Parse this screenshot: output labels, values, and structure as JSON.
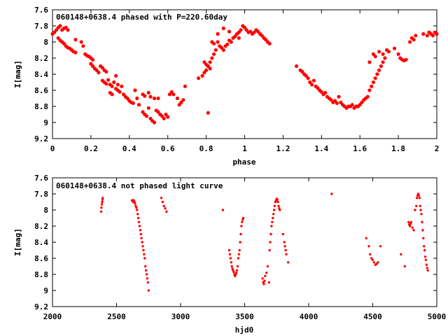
{
  "chart_data": [
    {
      "type": "scatter",
      "title": "060148+0638.4 phased with P=220.60day",
      "xlabel": "phase",
      "ylabel": "I[mag]",
      "xlim": [
        0,
        2
      ],
      "ylim": [
        7.6,
        9.2
      ],
      "y_inverted": true,
      "x_ticks": [
        "0",
        "0.2",
        "0.4",
        "0.6",
        "0.8",
        "1",
        "1.2",
        "1.4",
        "1.6",
        "1.8",
        "2"
      ],
      "y_ticks": [
        "7.6",
        "7.8",
        "8",
        "8.2",
        "8.4",
        "8.6",
        "8.8",
        "9",
        "9.2"
      ],
      "marker": "filled-circle",
      "color": "#ff0000",
      "grid": false,
      "legend": "none",
      "points": [
        [
          0.0,
          7.9
        ],
        [
          0.01,
          7.88
        ],
        [
          0.02,
          7.85
        ],
        [
          0.03,
          7.82
        ],
        [
          0.04,
          7.8
        ],
        [
          0.05,
          7.85
        ],
        [
          0.06,
          7.83
        ],
        [
          0.07,
          7.82
        ],
        [
          0.08,
          7.85
        ],
        [
          0.03,
          7.95
        ],
        [
          0.04,
          7.98
        ],
        [
          0.05,
          8.0
        ],
        [
          0.06,
          8.02
        ],
        [
          0.07,
          8.05
        ],
        [
          0.08,
          8.07
        ],
        [
          0.09,
          8.08
        ],
        [
          0.1,
          8.1
        ],
        [
          0.11,
          8.12
        ],
        [
          0.12,
          8.13
        ],
        [
          0.12,
          7.97
        ],
        [
          0.15,
          8.0
        ],
        [
          0.16,
          8.05
        ],
        [
          0.17,
          8.15
        ],
        [
          0.18,
          8.17
        ],
        [
          0.19,
          8.18
        ],
        [
          0.2,
          8.2
        ],
        [
          0.21,
          8.22
        ],
        [
          0.2,
          8.27
        ],
        [
          0.21,
          8.3
        ],
        [
          0.22,
          8.33
        ],
        [
          0.23,
          8.35
        ],
        [
          0.24,
          8.38
        ],
        [
          0.25,
          8.3
        ],
        [
          0.26,
          8.32
        ],
        [
          0.27,
          8.35
        ],
        [
          0.28,
          8.37
        ],
        [
          0.26,
          8.48
        ],
        [
          0.27,
          8.5
        ],
        [
          0.28,
          8.52
        ],
        [
          0.29,
          8.47
        ],
        [
          0.3,
          8.53
        ],
        [
          0.31,
          8.55
        ],
        [
          0.32,
          8.5
        ],
        [
          0.33,
          8.42
        ],
        [
          0.34,
          8.53
        ],
        [
          0.3,
          8.63
        ],
        [
          0.31,
          8.65
        ],
        [
          0.33,
          8.58
        ],
        [
          0.34,
          8.6
        ],
        [
          0.35,
          8.62
        ],
        [
          0.36,
          8.55
        ],
        [
          0.37,
          8.65
        ],
        [
          0.38,
          8.68
        ],
        [
          0.39,
          8.7
        ],
        [
          0.4,
          8.73
        ],
        [
          0.41,
          8.75
        ],
        [
          0.42,
          8.76
        ],
        [
          0.43,
          8.6
        ],
        [
          0.44,
          8.7
        ],
        [
          0.45,
          8.78
        ],
        [
          0.47,
          8.65
        ],
        [
          0.48,
          8.67
        ],
        [
          0.5,
          8.63
        ],
        [
          0.51,
          8.68
        ],
        [
          0.53,
          8.7
        ],
        [
          0.55,
          8.7
        ],
        [
          0.47,
          8.87
        ],
        [
          0.48,
          8.9
        ],
        [
          0.49,
          8.92
        ],
        [
          0.5,
          8.82
        ],
        [
          0.51,
          8.95
        ],
        [
          0.52,
          8.98
        ],
        [
          0.53,
          9.0
        ],
        [
          0.54,
          8.85
        ],
        [
          0.55,
          8.87
        ],
        [
          0.56,
          8.9
        ],
        [
          0.57,
          8.92
        ],
        [
          0.58,
          8.95
        ],
        [
          0.59,
          8.9
        ],
        [
          0.6,
          8.93
        ],
        [
          0.61,
          8.65
        ],
        [
          0.62,
          8.62
        ],
        [
          0.63,
          8.65
        ],
        [
          0.65,
          8.7
        ],
        [
          0.66,
          8.78
        ],
        [
          0.67,
          8.75
        ],
        [
          0.68,
          8.72
        ],
        [
          0.69,
          8.55
        ],
        [
          0.76,
          8.45
        ],
        [
          0.78,
          8.42
        ],
        [
          0.79,
          8.38
        ],
        [
          0.8,
          8.35
        ],
        [
          0.81,
          8.3
        ],
        [
          0.82,
          8.25
        ],
        [
          0.83,
          8.2
        ],
        [
          0.84,
          8.15
        ],
        [
          0.85,
          8.1
        ],
        [
          0.86,
          7.9
        ],
        [
          0.79,
          8.25
        ],
        [
          0.8,
          8.28
        ],
        [
          0.81,
          8.3
        ],
        [
          0.82,
          8.33
        ],
        [
          0.81,
          8.88
        ],
        [
          0.83,
          8.0
        ],
        [
          0.84,
          8.02
        ],
        [
          0.86,
          8.0
        ],
        [
          0.87,
          8.05
        ],
        [
          0.88,
          8.07
        ],
        [
          0.89,
          8.1
        ],
        [
          0.9,
          8.05
        ],
        [
          0.91,
          8.03
        ],
        [
          0.92,
          7.98
        ],
        [
          0.93,
          8.0
        ],
        [
          0.94,
          7.95
        ],
        [
          0.95,
          7.93
        ],
        [
          0.96,
          7.9
        ],
        [
          0.97,
          7.88
        ],
        [
          0.98,
          7.85
        ],
        [
          0.99,
          7.8
        ],
        [
          1.0,
          7.82
        ],
        [
          1.01,
          7.85
        ],
        [
          1.02,
          7.88
        ],
        [
          1.03,
          7.87
        ],
        [
          1.04,
          7.9
        ],
        [
          1.05,
          7.88
        ],
        [
          1.06,
          7.85
        ],
        [
          1.07,
          7.87
        ],
        [
          1.08,
          7.9
        ],
        [
          1.09,
          7.92
        ],
        [
          1.1,
          7.95
        ],
        [
          1.11,
          7.97
        ],
        [
          1.12,
          8.0
        ],
        [
          1.13,
          8.02
        ],
        [
          0.89,
          7.83
        ],
        [
          0.92,
          7.87
        ],
        [
          0.97,
          7.95
        ],
        [
          1.27,
          8.3
        ],
        [
          1.29,
          8.35
        ],
        [
          1.3,
          8.37
        ],
        [
          1.31,
          8.4
        ],
        [
          1.32,
          8.42
        ],
        [
          1.33,
          8.45
        ],
        [
          1.34,
          8.5
        ],
        [
          1.35,
          8.53
        ],
        [
          1.36,
          8.48
        ],
        [
          1.37,
          8.55
        ],
        [
          1.38,
          8.57
        ],
        [
          1.39,
          8.6
        ],
        [
          1.4,
          8.62
        ],
        [
          1.41,
          8.65
        ],
        [
          1.42,
          8.63
        ],
        [
          1.43,
          8.68
        ],
        [
          1.44,
          8.7
        ],
        [
          1.45,
          8.72
        ],
        [
          1.46,
          8.75
        ],
        [
          1.47,
          8.73
        ],
        [
          1.48,
          8.76
        ],
        [
          1.49,
          8.68
        ],
        [
          1.5,
          8.75
        ],
        [
          1.51,
          8.78
        ],
        [
          1.52,
          8.8
        ],
        [
          1.53,
          8.82
        ],
        [
          1.54,
          8.8
        ],
        [
          1.55,
          8.8
        ],
        [
          1.56,
          8.78
        ],
        [
          1.57,
          8.82
        ],
        [
          1.58,
          8.8
        ],
        [
          1.59,
          8.8
        ],
        [
          1.6,
          8.78
        ],
        [
          1.61,
          8.75
        ],
        [
          1.62,
          8.72
        ],
        [
          1.63,
          8.7
        ],
        [
          1.64,
          8.68
        ],
        [
          1.65,
          8.6
        ],
        [
          1.66,
          8.55
        ],
        [
          1.67,
          8.5
        ],
        [
          1.68,
          8.45
        ],
        [
          1.69,
          8.4
        ],
        [
          1.7,
          8.35
        ],
        [
          1.71,
          8.3
        ],
        [
          1.72,
          8.25
        ],
        [
          1.65,
          8.25
        ],
        [
          1.67,
          8.15
        ],
        [
          1.68,
          8.18
        ],
        [
          1.7,
          8.12
        ],
        [
          1.72,
          8.15
        ],
        [
          1.73,
          8.2
        ],
        [
          1.74,
          8.1
        ],
        [
          1.75,
          8.12
        ],
        [
          1.78,
          8.08
        ],
        [
          1.8,
          8.15
        ],
        [
          1.81,
          8.2
        ],
        [
          1.82,
          8.22
        ],
        [
          1.83,
          8.23
        ],
        [
          1.84,
          8.22
        ],
        [
          1.86,
          8.0
        ],
        [
          1.87,
          7.95
        ],
        [
          1.88,
          7.97
        ],
        [
          1.89,
          7.92
        ],
        [
          1.93,
          7.9
        ],
        [
          1.95,
          7.92
        ],
        [
          1.96,
          7.88
        ],
        [
          1.97,
          7.9
        ],
        [
          1.98,
          7.92
        ],
        [
          1.99,
          7.88
        ],
        [
          2.0,
          7.9
        ]
      ]
    },
    {
      "type": "scatter",
      "title": "060148+0638.4 not phased light curve",
      "xlabel": "hjd0",
      "ylabel": "I[mag]",
      "xlim": [
        2000,
        5000
      ],
      "ylim": [
        7.6,
        9.2
      ],
      "y_inverted": true,
      "x_ticks": [
        "2000",
        "2500",
        "3000",
        "3500",
        "4000",
        "4500",
        "5000"
      ],
      "y_ticks": [
        "7.6",
        "7.8",
        "8",
        "8.2",
        "8.4",
        "8.6",
        "8.8",
        "9",
        "9.2"
      ],
      "marker": "filled-circle",
      "color": "#ff0000",
      "grid": false,
      "legend": "none",
      "points": [
        [
          2380,
          8.02
        ],
        [
          2382,
          7.97
        ],
        [
          2385,
          7.93
        ],
        [
          2388,
          7.9
        ],
        [
          2390,
          7.87
        ],
        [
          2392,
          7.85
        ],
        [
          2620,
          7.88
        ],
        [
          2625,
          7.88
        ],
        [
          2630,
          7.9
        ],
        [
          2635,
          7.88
        ],
        [
          2640,
          7.9
        ],
        [
          2645,
          7.92
        ],
        [
          2650,
          7.95
        ],
        [
          2655,
          7.97
        ],
        [
          2660,
          8.0
        ],
        [
          2665,
          8.05
        ],
        [
          2670,
          8.1
        ],
        [
          2675,
          8.15
        ],
        [
          2680,
          8.2
        ],
        [
          2685,
          8.25
        ],
        [
          2690,
          8.3
        ],
        [
          2695,
          8.35
        ],
        [
          2700,
          8.4
        ],
        [
          2705,
          8.45
        ],
        [
          2710,
          8.5
        ],
        [
          2715,
          8.55
        ],
        [
          2720,
          8.6
        ],
        [
          2725,
          8.7
        ],
        [
          2730,
          8.75
        ],
        [
          2735,
          8.8
        ],
        [
          2740,
          8.85
        ],
        [
          2745,
          8.9
        ],
        [
          2750,
          9.0
        ],
        [
          2850,
          7.85
        ],
        [
          2860,
          7.9
        ],
        [
          2870,
          7.95
        ],
        [
          2880,
          7.98
        ],
        [
          2890,
          8.02
        ],
        [
          3330,
          8.0
        ],
        [
          3380,
          8.5
        ],
        [
          3385,
          8.55
        ],
        [
          3390,
          8.6
        ],
        [
          3395,
          8.65
        ],
        [
          3400,
          8.7
        ],
        [
          3405,
          8.73
        ],
        [
          3410,
          8.75
        ],
        [
          3415,
          8.77
        ],
        [
          3420,
          8.8
        ],
        [
          3425,
          8.82
        ],
        [
          3430,
          8.8
        ],
        [
          3435,
          8.78
        ],
        [
          3440,
          8.75
        ],
        [
          3445,
          8.7
        ],
        [
          3450,
          8.6
        ],
        [
          3455,
          8.55
        ],
        [
          3460,
          8.5
        ],
        [
          3465,
          8.4
        ],
        [
          3470,
          8.3
        ],
        [
          3475,
          8.2
        ],
        [
          3480,
          8.15
        ],
        [
          3485,
          8.12
        ],
        [
          3490,
          8.1
        ],
        [
          3640,
          8.85
        ],
        [
          3645,
          8.9
        ],
        [
          3650,
          8.92
        ],
        [
          3655,
          8.88
        ],
        [
          3660,
          8.82
        ],
        [
          3670,
          8.78
        ],
        [
          3680,
          8.7
        ],
        [
          3690,
          8.9
        ],
        [
          3695,
          8.5
        ],
        [
          3700,
          8.4
        ],
        [
          3705,
          8.3
        ],
        [
          3710,
          8.2
        ],
        [
          3715,
          8.15
        ],
        [
          3720,
          8.1
        ],
        [
          3725,
          8.05
        ],
        [
          3730,
          8.0
        ],
        [
          3735,
          7.95
        ],
        [
          3740,
          7.9
        ],
        [
          3745,
          7.88
        ],
        [
          3750,
          7.86
        ],
        [
          3755,
          7.87
        ],
        [
          3760,
          7.9
        ],
        [
          3765,
          7.95
        ],
        [
          3770,
          7.98
        ],
        [
          3775,
          8.0
        ],
        [
          3800,
          8.3
        ],
        [
          3810,
          8.4
        ],
        [
          3815,
          8.45
        ],
        [
          3820,
          8.5
        ],
        [
          3825,
          8.55
        ],
        [
          3840,
          8.65
        ],
        [
          4180,
          7.8
        ],
        [
          4450,
          8.35
        ],
        [
          4470,
          8.45
        ],
        [
          4480,
          8.55
        ],
        [
          4490,
          8.6
        ],
        [
          4500,
          8.62
        ],
        [
          4510,
          8.65
        ],
        [
          4520,
          8.68
        ],
        [
          4530,
          8.67
        ],
        [
          4540,
          8.65
        ],
        [
          4560,
          8.45
        ],
        [
          4720,
          8.55
        ],
        [
          4750,
          8.7
        ],
        [
          4780,
          8.15
        ],
        [
          4785,
          8.18
        ],
        [
          4790,
          8.2
        ],
        [
          4795,
          8.17
        ],
        [
          4800,
          8.15
        ],
        [
          4810,
          8.22
        ],
        [
          4820,
          8.25
        ],
        [
          4830,
          8.0
        ],
        [
          4840,
          7.95
        ],
        [
          4845,
          7.85
        ],
        [
          4850,
          7.82
        ],
        [
          4855,
          7.8
        ],
        [
          4860,
          7.82
        ],
        [
          4865,
          7.85
        ],
        [
          4870,
          7.95
        ],
        [
          4875,
          8.0
        ],
        [
          4880,
          8.05
        ],
        [
          4885,
          8.15
        ],
        [
          4890,
          8.25
        ],
        [
          4895,
          8.35
        ],
        [
          4900,
          8.45
        ],
        [
          4905,
          8.5
        ],
        [
          4910,
          8.58
        ],
        [
          4915,
          8.62
        ],
        [
          4920,
          8.68
        ],
        [
          4925,
          8.72
        ],
        [
          4930,
          8.75
        ]
      ]
    }
  ]
}
